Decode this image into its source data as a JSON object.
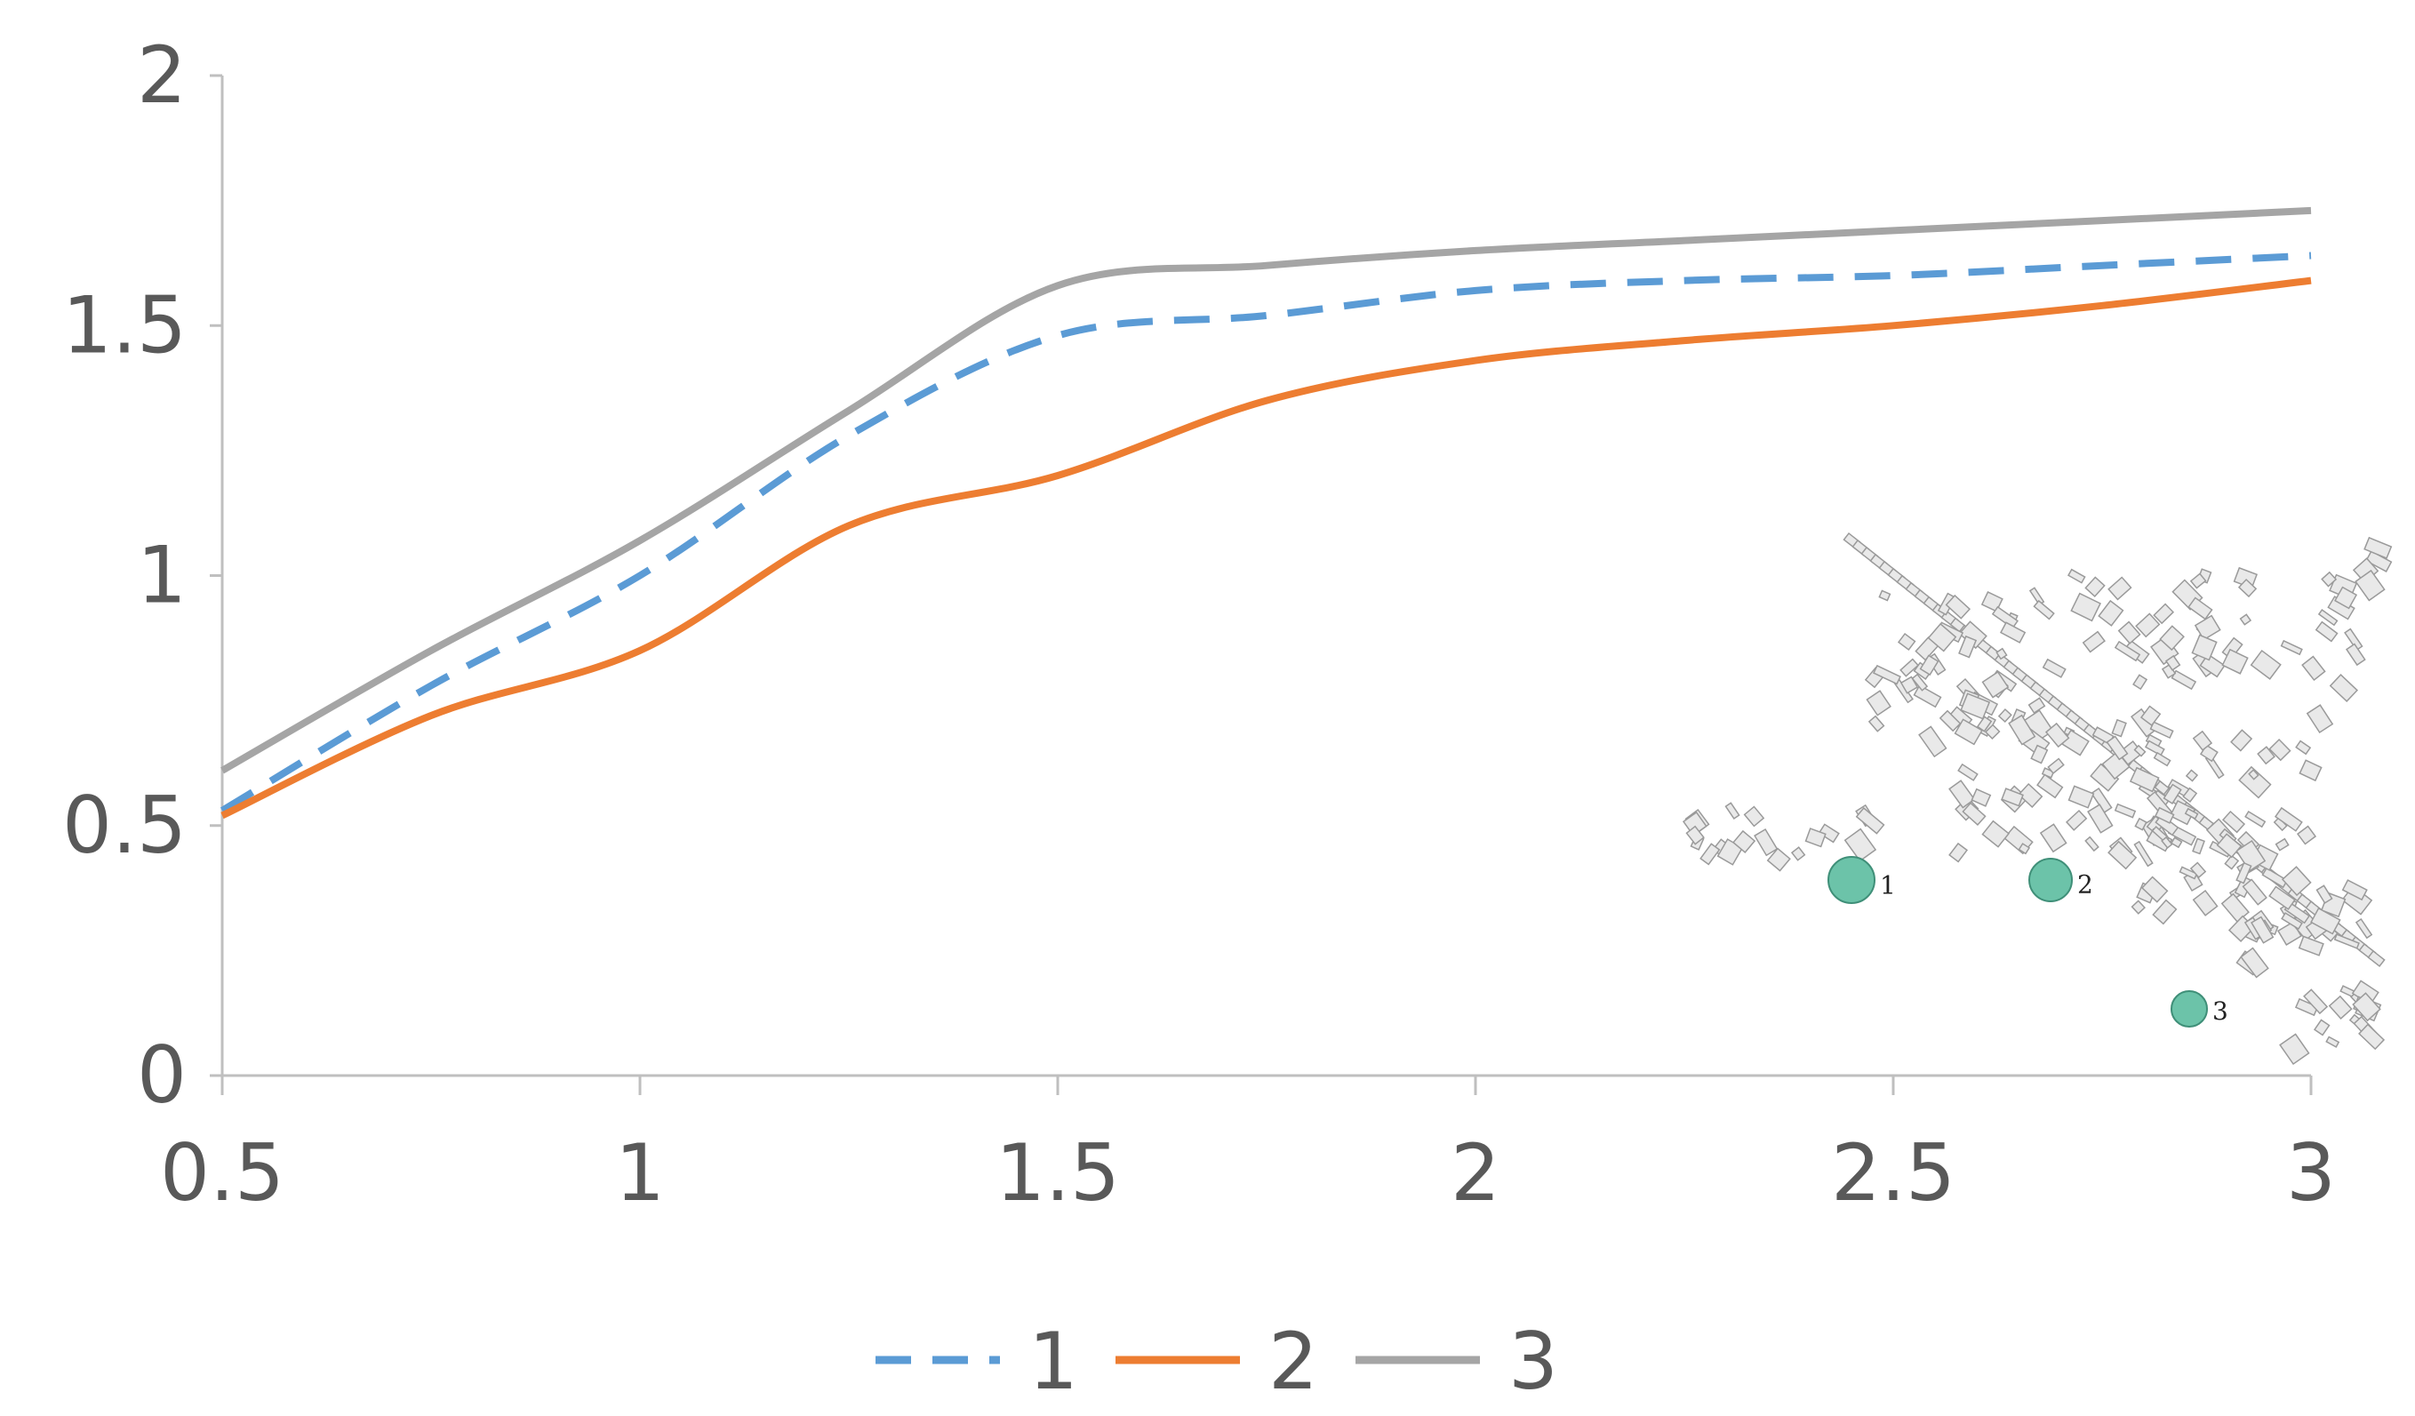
{
  "chart_data": {
    "type": "line",
    "title": "",
    "xlabel": "",
    "ylabel": "",
    "xlim": [
      0.5,
      3
    ],
    "ylim": [
      0,
      2
    ],
    "x_ticks": [
      "0.5",
      "1",
      "1.5",
      "2",
      "2.5",
      "3"
    ],
    "y_ticks": [
      "0",
      "0.5",
      "1",
      "1.5",
      "2"
    ],
    "grid": false,
    "legend_position": "bottom-center",
    "series": [
      {
        "name": "1",
        "color": "#5b9bd5",
        "dash": "dashed",
        "points": [
          [
            0.5,
            0.53
          ],
          [
            0.75,
            0.78
          ],
          [
            1.0,
            1.0
          ],
          [
            1.25,
            1.28
          ],
          [
            1.5,
            1.48
          ],
          [
            1.75,
            1.52
          ],
          [
            2.0,
            1.57
          ],
          [
            2.25,
            1.59
          ],
          [
            2.5,
            1.6
          ],
          [
            2.75,
            1.62
          ],
          [
            3.0,
            1.64
          ]
        ]
      },
      {
        "name": "2",
        "color": "#ed7d31",
        "dash": "solid",
        "points": [
          [
            0.5,
            0.52
          ],
          [
            0.75,
            0.72
          ],
          [
            1.0,
            0.85
          ],
          [
            1.25,
            1.1
          ],
          [
            1.5,
            1.2
          ],
          [
            1.75,
            1.35
          ],
          [
            2.0,
            1.43
          ],
          [
            2.25,
            1.47
          ],
          [
            2.5,
            1.5
          ],
          [
            2.75,
            1.54
          ],
          [
            3.0,
            1.59
          ]
        ]
      },
      {
        "name": "3",
        "color": "#a5a5a5",
        "dash": "solid",
        "points": [
          [
            0.5,
            0.61
          ],
          [
            0.75,
            0.85
          ],
          [
            1.0,
            1.07
          ],
          [
            1.25,
            1.33
          ],
          [
            1.5,
            1.58
          ],
          [
            1.75,
            1.62
          ],
          [
            2.0,
            1.65
          ],
          [
            2.25,
            1.67
          ],
          [
            2.5,
            1.69
          ],
          [
            2.75,
            1.71
          ],
          [
            3.0,
            1.73
          ]
        ]
      }
    ],
    "inset_map": {
      "markers": [
        {
          "label": "1",
          "color": "#6cc3a9"
        },
        {
          "label": "2",
          "color": "#6cc3a9"
        },
        {
          "label": "3",
          "color": "#6cc3a9"
        }
      ]
    }
  }
}
